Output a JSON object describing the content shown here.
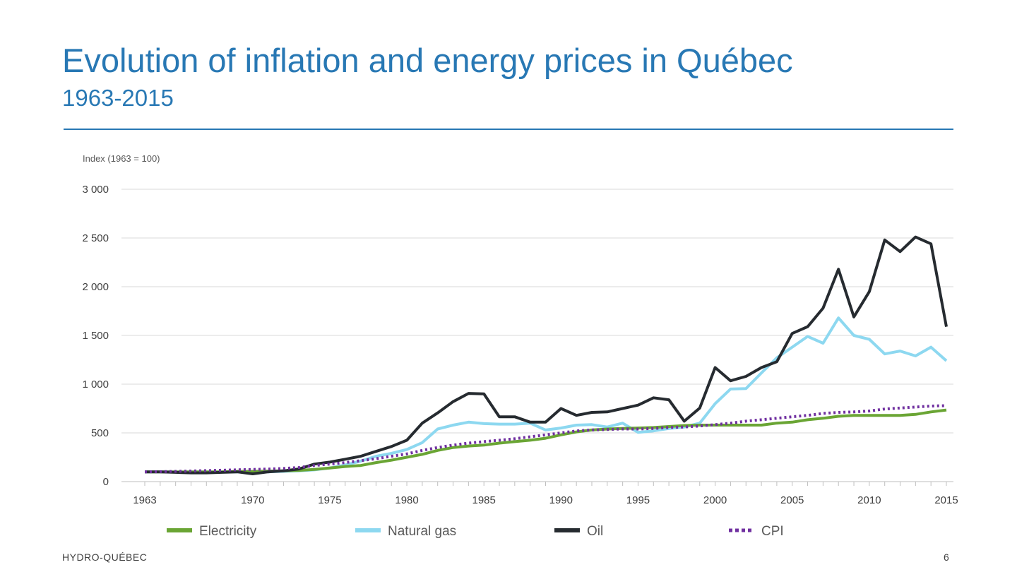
{
  "header": {
    "title": "Evolution of inflation and energy prices in Québec",
    "subtitle": "1963-2015"
  },
  "footer": {
    "brand": "HYDRO-QUÉBEC",
    "page_number": "6"
  },
  "colors": {
    "title": "#2878b4",
    "electricity": "#6aa534",
    "natural_gas": "#8dd8f0",
    "oil": "#262b30",
    "cpi": "#7030a0",
    "grid": "#d9d9d9"
  },
  "chart_data": {
    "type": "line",
    "ylabel": "Index (1963 = 100)",
    "ylim": [
      0,
      3000
    ],
    "yticks": [
      0,
      500,
      1000,
      1500,
      2000,
      2500,
      3000
    ],
    "ytick_labels": [
      "0",
      "500",
      "1 000",
      "1 500",
      "2 000",
      "2 500",
      "3 000"
    ],
    "xlim": [
      1963,
      2015
    ],
    "xtick_labels": [
      "1963",
      "1970",
      "1975",
      "1980",
      "1985",
      "1990",
      "1995",
      "2000",
      "2005",
      "2010",
      "2015"
    ],
    "grid": true,
    "legend_position": "bottom",
    "x": [
      1963,
      1964,
      1965,
      1966,
      1967,
      1968,
      1969,
      1970,
      1971,
      1972,
      1973,
      1974,
      1975,
      1976,
      1977,
      1978,
      1979,
      1980,
      1981,
      1982,
      1983,
      1984,
      1985,
      1986,
      1987,
      1988,
      1989,
      1990,
      1991,
      1992,
      1993,
      1994,
      1995,
      1996,
      1997,
      1998,
      1999,
      2000,
      2001,
      2002,
      2003,
      2004,
      2005,
      2006,
      2007,
      2008,
      2009,
      2010,
      2011,
      2012,
      2013,
      2014,
      2015
    ],
    "series": [
      {
        "name": "Electricity",
        "color": "#6aa534",
        "style": "solid",
        "values": [
          100,
          100,
          100,
          100,
          100,
          100,
          105,
          105,
          108,
          110,
          115,
          125,
          140,
          155,
          165,
          195,
          220,
          250,
          280,
          320,
          350,
          365,
          375,
          395,
          410,
          425,
          445,
          480,
          510,
          530,
          540,
          545,
          550,
          555,
          565,
          575,
          580,
          580,
          580,
          580,
          580,
          600,
          610,
          635,
          650,
          670,
          680,
          680,
          680,
          680,
          690,
          715,
          735
        ]
      },
      {
        "name": "Natural gas",
        "color": "#8dd8f0",
        "style": "solid",
        "values": [
          100,
          100,
          100,
          100,
          100,
          100,
          100,
          100,
          100,
          105,
          110,
          120,
          140,
          170,
          210,
          260,
          290,
          330,
          400,
          540,
          580,
          610,
          595,
          590,
          590,
          600,
          530,
          550,
          580,
          585,
          560,
          600,
          505,
          520,
          545,
          560,
          600,
          800,
          950,
          955,
          1115,
          1270,
          1380,
          1490,
          1420,
          1680,
          1500,
          1460,
          1310,
          1340,
          1290,
          1380,
          1240
        ]
      },
      {
        "name": "Oil",
        "color": "#262b30",
        "style": "solid",
        "values": [
          100,
          100,
          95,
          90,
          90,
          95,
          100,
          80,
          100,
          110,
          130,
          180,
          200,
          230,
          260,
          310,
          360,
          425,
          600,
          705,
          820,
          905,
          900,
          665,
          665,
          610,
          610,
          750,
          680,
          710,
          715,
          750,
          785,
          860,
          840,
          620,
          755,
          1170,
          1035,
          1080,
          1170,
          1230,
          1520,
          1590,
          1780,
          2180,
          1690,
          1950,
          2480,
          2360,
          2510,
          2440,
          1590
        ]
      },
      {
        "name": "CPI",
        "color": "#7030a0",
        "style": "dotted",
        "values": [
          100,
          102,
          105,
          109,
          113,
          117,
          121,
          125,
          129,
          135,
          145,
          165,
          180,
          195,
          215,
          235,
          260,
          285,
          320,
          350,
          375,
          395,
          410,
          425,
          440,
          460,
          480,
          500,
          520,
          530,
          535,
          540,
          540,
          545,
          555,
          560,
          570,
          585,
          600,
          620,
          635,
          650,
          665,
          680,
          700,
          710,
          715,
          725,
          745,
          755,
          765,
          775,
          780
        ]
      }
    ]
  }
}
